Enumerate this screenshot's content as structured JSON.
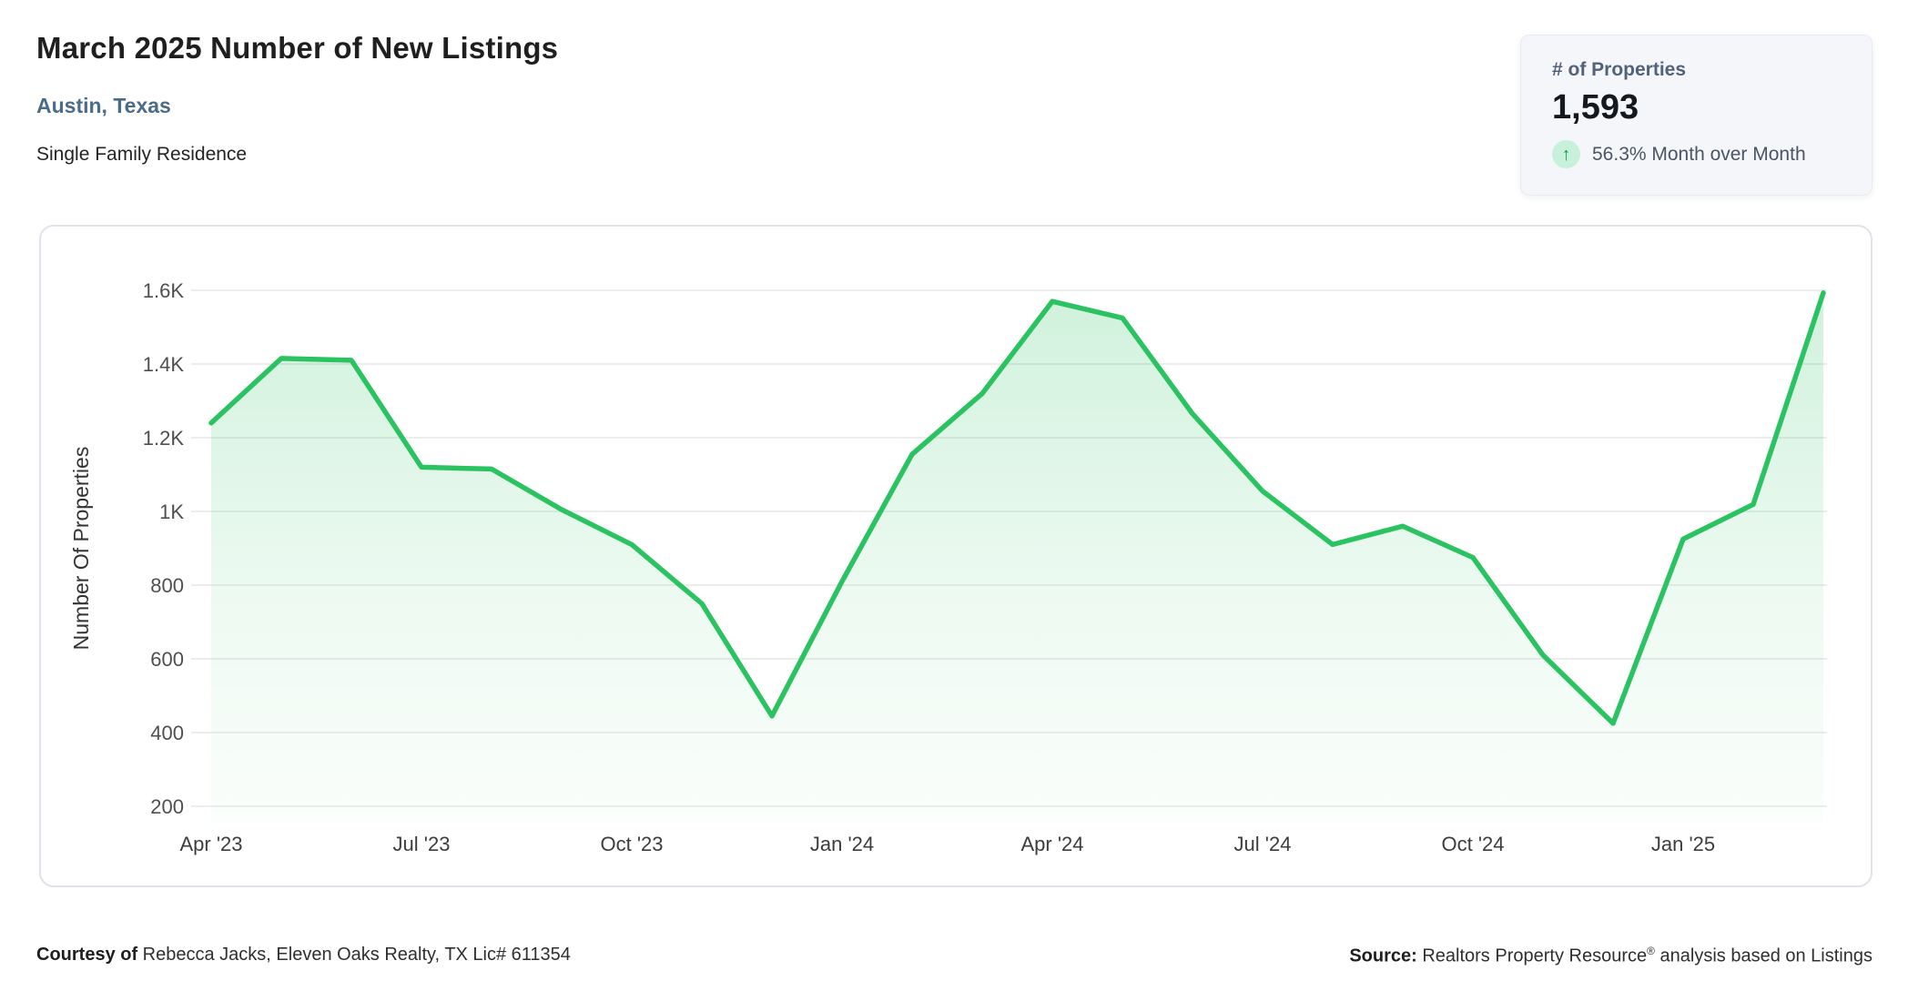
{
  "header": {
    "title": "March 2025 Number of New Listings",
    "subtitle": "Austin, Texas",
    "property_type": "Single Family Residence"
  },
  "stat_card": {
    "label": "# of Properties",
    "value": "1,593",
    "arrow_icon": "↑",
    "mom_text": "56.3% Month over Month"
  },
  "chart_data": {
    "type": "area",
    "title": "March 2025 Number of New Listings",
    "ylabel": "Number Of Properties",
    "xlabel": "",
    "x": [
      "Apr '23",
      "May '23",
      "Jun '23",
      "Jul '23",
      "Aug '23",
      "Sep '23",
      "Oct '23",
      "Nov '23",
      "Dec '23",
      "Jan '24",
      "Feb '24",
      "Mar '24",
      "Apr '24",
      "May '24",
      "Jun '24",
      "Jul '24",
      "Aug '24",
      "Sep '24",
      "Oct '24",
      "Nov '24",
      "Dec '24",
      "Jan '25",
      "Feb '25",
      "Mar '25"
    ],
    "series": [
      {
        "name": "# of Properties",
        "values": [
          1240,
          1415,
          1410,
          1120,
          1115,
          1005,
          910,
          750,
          445,
          810,
          1155,
          1320,
          1570,
          1525,
          1265,
          1055,
          910,
          960,
          875,
          610,
          425,
          925,
          1019,
          1593
        ]
      }
    ],
    "x_tick_labels": [
      "Apr '23",
      "Jul '23",
      "Oct '23",
      "Jan '24",
      "Apr '24",
      "Jul '24",
      "Oct '24",
      "Jan '25"
    ],
    "x_tick_indices": [
      0,
      3,
      6,
      9,
      12,
      15,
      18,
      21
    ],
    "y_ticks": [
      200,
      400,
      600,
      800,
      1000,
      1200,
      1400,
      1600
    ],
    "y_tick_labels": [
      "200",
      "400",
      "600",
      "800",
      "1K",
      "1.2K",
      "1.4K",
      "1.6K"
    ],
    "ylim": [
      200,
      1600
    ],
    "grid": true,
    "legend": "none",
    "line_color": "#2bc362",
    "area_color": "#2bc362",
    "grid_color": "#e7e7e8",
    "tick_color": "#4f4f4f",
    "axis_title_color": "#333333"
  },
  "footer": {
    "courtesy_label": "Courtesy of",
    "courtesy_text": " Rebecca Jacks, Eleven Oaks Realty, TX Lic# 611354",
    "source_label": "Source:",
    "source_name": " Realtors Property Resource",
    "source_reg": "®",
    "source_rest": " analysis based on Listings"
  }
}
